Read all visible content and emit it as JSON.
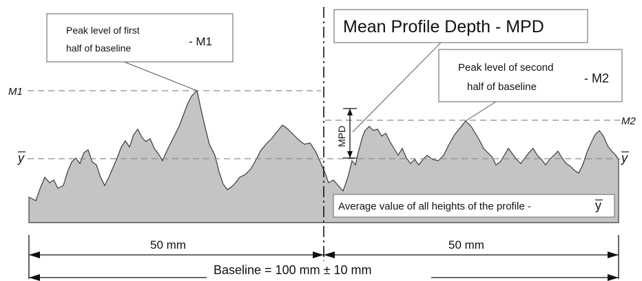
{
  "colors": {
    "profile_fill": "#c4c4c4",
    "profile_stroke": "#3a3a3a",
    "reference_lines": "#8a8a8a",
    "text": "#111111"
  },
  "labels": {
    "m1_line": "M1",
    "m2_line": "M2",
    "ybar_left": "y",
    "ybar_right": "y",
    "mpd_vertical": "MPD"
  },
  "callouts": {
    "peak_first": {
      "line1": "Peak level of first",
      "line2": "half of baseline",
      "suffix": "- M1"
    },
    "mpd_title": "Mean Profile Depth - MPD",
    "peak_second": {
      "line1": "Peak level of second",
      "line2": "half of baseline",
      "suffix": "- M2"
    },
    "average": {
      "text": "Average value of all heights of the profile -",
      "symbol": "y"
    }
  },
  "dimensions": {
    "left_half": "50 mm",
    "right_half": "50 mm",
    "baseline": "Baseline = 100 mm ± 10 mm"
  }
}
